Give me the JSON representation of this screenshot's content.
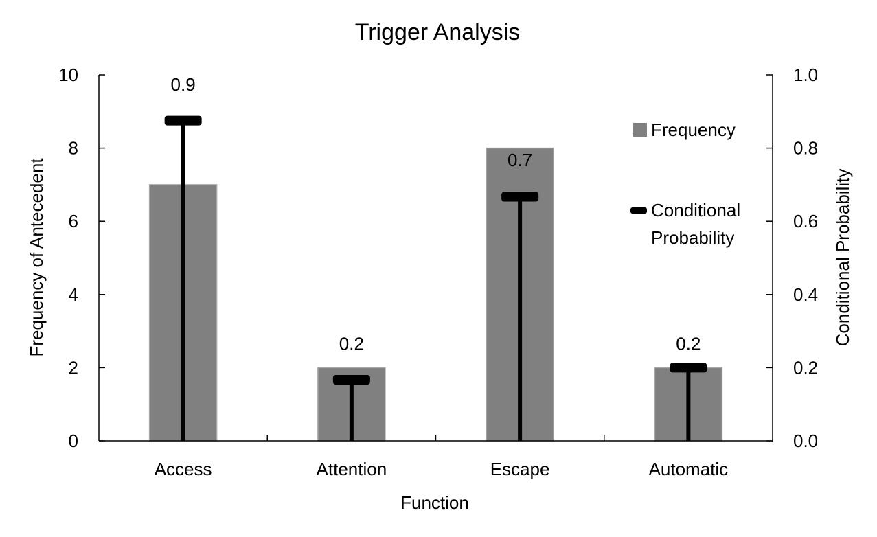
{
  "chart_data": {
    "type": "bar",
    "title": "Trigger Analysis",
    "xlabel": "Function",
    "ylabel": "Frequency of Antecedent",
    "y2label": "Conditional Probability",
    "categories": [
      "Access",
      "Attention",
      "Escape",
      "Automatic"
    ],
    "ylim": [
      0,
      10
    ],
    "y2lim": [
      0,
      1.0
    ],
    "yticks": [
      "0",
      "2",
      "4",
      "6",
      "8",
      "10"
    ],
    "y2ticks": [
      "0.0",
      "0.2",
      "0.4",
      "0.6",
      "0.8",
      "1.0"
    ],
    "grid": false,
    "legend_position": "right",
    "series": [
      {
        "name": "Frequency",
        "type": "bar",
        "axis": "left",
        "color": "#808080",
        "values": [
          7,
          2,
          8,
          2
        ]
      },
      {
        "name": "Conditional Probability",
        "type": "marker-stem",
        "axis": "right",
        "color": "#000000",
        "values": [
          0.875,
          0.167,
          0.667,
          0.2
        ],
        "labels": [
          "0.9",
          "0.2",
          "0.7",
          "0.2"
        ]
      }
    ]
  }
}
